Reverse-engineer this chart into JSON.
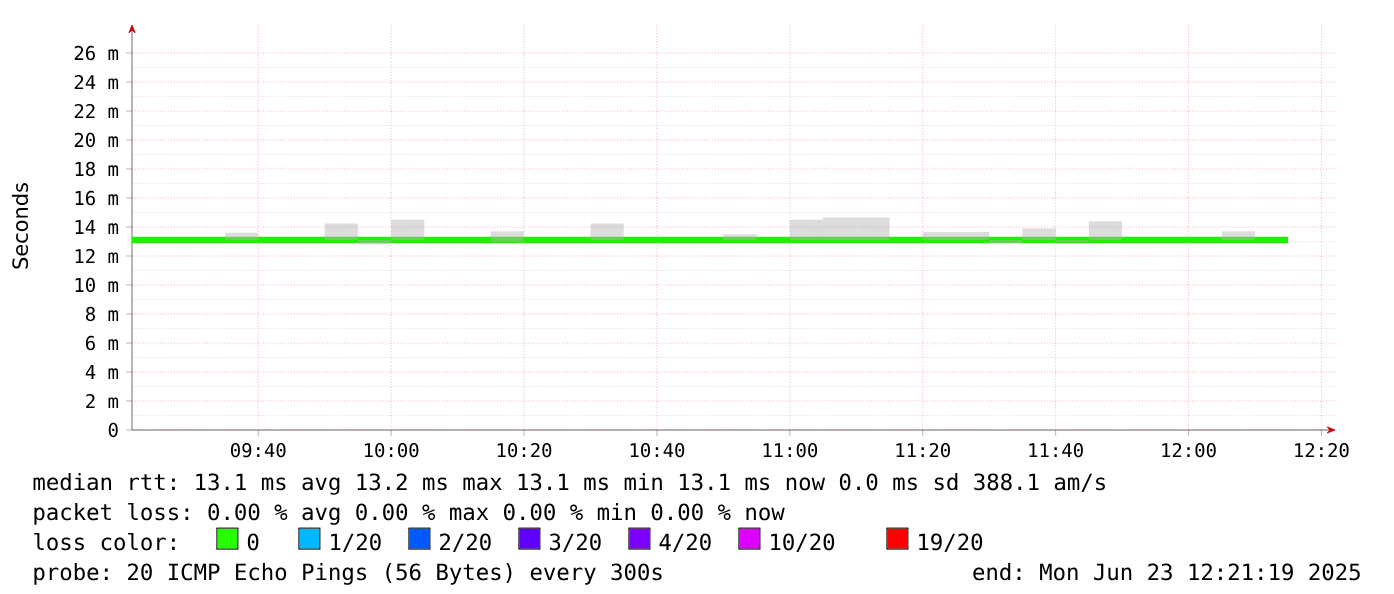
{
  "chart_data": {
    "type": "line",
    "ylabel": "Seconds",
    "xlim": [
      9.35,
      12.37
    ],
    "ylim": [
      0,
      28
    ],
    "xticks": [
      {
        "value": 9.6667,
        "label": "09:40"
      },
      {
        "value": 10,
        "label": "10:00"
      },
      {
        "value": 10.3333,
        "label": "10:20"
      },
      {
        "value": 10.6667,
        "label": "10:40"
      },
      {
        "value": 11,
        "label": "11:00"
      },
      {
        "value": 11.3333,
        "label": "11:20"
      },
      {
        "value": 11.6667,
        "label": "11:40"
      },
      {
        "value": 12,
        "label": "12:00"
      },
      {
        "value": 12.3333,
        "label": "12:20"
      }
    ],
    "yticks": [
      0,
      {
        "value": 2,
        "label": "2 m"
      },
      {
        "value": 4,
        "label": "4 m"
      },
      {
        "value": 6,
        "label": "6 m"
      },
      {
        "value": 8,
        "label": "8 m"
      },
      {
        "value": 10,
        "label": "10 m"
      },
      {
        "value": 12,
        "label": "12 m"
      },
      {
        "value": 14,
        "label": "14 m"
      },
      {
        "value": 16,
        "label": "16 m"
      },
      {
        "value": 18,
        "label": "18 m"
      },
      {
        "value": 20,
        "label": "20 m"
      },
      {
        "value": 22,
        "label": "22 m"
      },
      {
        "value": 24,
        "label": "24 m"
      },
      {
        "value": 26,
        "label": "26 m"
      }
    ],
    "grid": true,
    "series": [
      {
        "color": "#22ee00",
        "x": [
          9.35,
          9.4167,
          9.5,
          9.5833,
          9.6667,
          9.75,
          9.8333,
          9.9167,
          10,
          10.0833,
          10.1667,
          10.25,
          10.3333,
          10.4167,
          10.5,
          10.5833,
          10.6667,
          10.75,
          10.8333,
          10.9167,
          11,
          11.0833,
          11.1667,
          11.25,
          11.3333,
          11.4167,
          11.5,
          11.5833,
          11.6667,
          11.75,
          11.8333,
          11.9167,
          12,
          12.0833,
          12.1667,
          12.25
        ],
        "values": [
          13.1,
          13.1,
          13.1,
          13.1,
          13.1,
          13.1,
          13.1,
          13.1,
          13.1,
          13.1,
          13.1,
          13.1,
          13.1,
          13.1,
          13.1,
          13.1,
          13.1,
          13.1,
          13.1,
          13.1,
          13.1,
          13.1,
          13.1,
          13.1,
          13.1,
          13.1,
          13.1,
          13.1,
          13.1,
          13.1,
          13.1,
          13.1,
          13.1,
          13.1,
          13.1,
          13.1
        ],
        "lower": [
          null,
          null,
          null,
          13.1,
          13.1,
          null,
          13.1,
          12.8,
          13.1,
          13.1,
          null,
          13.0,
          13.1,
          null,
          13.1,
          13.1,
          null,
          null,
          13.1,
          13.1,
          13.1,
          13.1,
          13.1,
          13.1,
          13.1,
          13.1,
          12.9,
          13.1,
          13.0,
          13.1,
          13.1,
          null,
          null,
          13.1,
          13.1,
          null
        ],
        "upper": [
          null,
          null,
          null,
          13.6,
          13.1,
          null,
          14.25,
          13.1,
          14.5,
          13.1,
          null,
          13.7,
          13.1,
          null,
          14.25,
          13.1,
          null,
          null,
          13.5,
          13.1,
          14.5,
          14.65,
          14.65,
          13.1,
          13.65,
          13.65,
          13.1,
          13.9,
          13.1,
          14.4,
          13.1,
          null,
          null,
          13.7,
          13.1,
          null
        ]
      }
    ],
    "annotations": [
      "median rtt:  13.1 ms avg  13.2 ms max  13.1 ms min  13.1 ms now  0.0 ms sd  388.1   am/s",
      "packet loss: 0.00 % avg  0.00 % max  0.00 % min  0.00 % now",
      "loss color:",
      "0",
      "1/20",
      "2/20",
      "3/20",
      "4/20",
      "10/20",
      "19/20",
      "probe:       20 ICMP Echo Pings (56 Bytes) every 300s",
      "end: Mon Jun 23 12:21:19 2025"
    ]
  }
}
